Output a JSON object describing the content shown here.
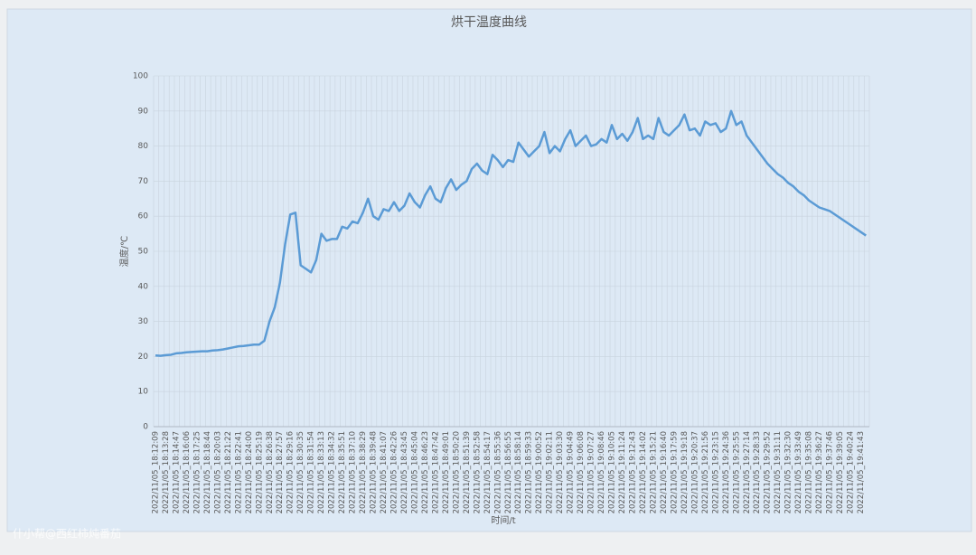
{
  "chart_data": {
    "type": "line",
    "title": "烘干温度曲线",
    "x_label": "时间/t",
    "y_label": "温度/℃",
    "watermark": "什小帮@西红柿炖番茄",
    "categories": [
      "2022/11/05_18:12:09",
      null,
      "2022/11/05_18:13:28",
      null,
      "2022/11/05_18:14:47",
      null,
      "2022/11/05_18:16:06",
      null,
      "2022/11/05_18:17:25",
      null,
      "2022/11/05_18:18:44",
      null,
      "2022/11/05_18:20:03",
      null,
      "2022/11/05_18:21:22",
      null,
      "2022/11/05_18:22:41",
      null,
      "2022/11/05_18:24:00",
      null,
      "2022/11/05_18:25:19",
      null,
      "2022/11/05_18:26:38",
      null,
      "2022/11/05_18:27:57",
      null,
      "2022/11/05_18:29:16",
      null,
      "2022/11/05_18:30:35",
      null,
      "2022/11/05_18:31:54",
      null,
      "2022/11/05_18:33:13",
      null,
      "2022/11/05_18:34:32",
      null,
      "2022/11/05_18:35:51",
      null,
      "2022/11/05_18:37:10",
      null,
      "2022/11/05_18:38:29",
      null,
      "2022/11/05_18:39:48",
      null,
      "2022/11/05_18:41:07",
      null,
      "2022/11/05_18:42:26",
      null,
      "2022/11/05_18:43:45",
      null,
      "2022/11/05_18:45:04",
      null,
      "2022/11/05_18:46:23",
      null,
      "2022/11/05_18:47:42",
      null,
      "2022/11/05_18:49:01",
      null,
      "2022/11/05_18:50:20",
      null,
      "2022/11/05_18:51:39",
      null,
      "2022/11/05_18:52:58",
      null,
      "2022/11/05_18:54:17",
      null,
      "2022/11/05_18:55:36",
      null,
      "2022/11/05_18:56:55",
      null,
      "2022/11/05_18:58:14",
      null,
      "2022/11/05_18:59:33",
      null,
      "2022/11/05_19:00:52",
      null,
      "2022/11/05_19:02:11",
      null,
      "2022/11/05_19:03:30",
      null,
      "2022/11/05_19:04:49",
      null,
      "2022/11/05_19:06:08",
      null,
      "2022/11/05_19:07:27",
      null,
      "2022/11/05_19:08:46",
      null,
      "2022/11/05_19:10:05",
      null,
      "2022/11/05_19:11:24",
      null,
      "2022/11/05_19:12:43",
      null,
      "2022/11/05_19:14:02",
      null,
      "2022/11/05_19:15:21",
      null,
      "2022/11/05_19:16:40",
      null,
      "2022/11/05_19:17:59",
      null,
      "2022/11/05_19:19:18",
      null,
      "2022/11/05_19:20:37",
      null,
      "2022/11/05_19:21:56",
      null,
      "2022/11/05_19:23:15",
      null,
      "2022/11/05_19:24:36",
      null,
      "2022/11/05_19:25:55",
      null,
      "2022/11/05_19:27:14",
      null,
      "2022/11/05_19:28:33",
      null,
      "2022/11/05_19:29:52",
      null,
      "2022/11/05_19:31:11",
      null,
      "2022/11/05_19:32:30",
      null,
      "2022/11/05_19:33:49",
      null,
      "2022/11/05_19:35:08",
      null,
      "2022/11/05_19:36:27",
      null,
      "2022/11/05_19:37:46",
      null,
      "2022/11/05_19:39:05",
      null,
      "2022/11/05_19:40:24",
      null,
      "2022/11/05_19:41:43",
      null
    ],
    "values": [
      20.3,
      20.2,
      20.4,
      20.5,
      20.9,
      21.0,
      21.2,
      21.3,
      21.4,
      21.5,
      21.5,
      21.7,
      21.8,
      22.0,
      22.3,
      22.6,
      22.9,
      23.0,
      23.2,
      23.4,
      23.4,
      24.5,
      30,
      34,
      41,
      52,
      60.5,
      61,
      46,
      45,
      44,
      47.5,
      55,
      53,
      53.5,
      53.5,
      57,
      56.5,
      58.5,
      58,
      61,
      65,
      60,
      59,
      62,
      61.5,
      64,
      61.5,
      63,
      66.5,
      64,
      62.5,
      66,
      68.5,
      65,
      64,
      68,
      70.5,
      67.5,
      69,
      70,
      73.5,
      75,
      73,
      72,
      77.5,
      76,
      74,
      76,
      75.5,
      81,
      79,
      77,
      78.5,
      80,
      84,
      78,
      80,
      78.5,
      82,
      84.5,
      80,
      81.5,
      83,
      80,
      80.5,
      82,
      81,
      86,
      82,
      83.5,
      81.5,
      84,
      88,
      82,
      83,
      82,
      88,
      84,
      83,
      84.5,
      86,
      89,
      84.5,
      85,
      83,
      87,
      86,
      86.5,
      84,
      85,
      90,
      86,
      87,
      83,
      81,
      79,
      77,
      75,
      73.5,
      72,
      71,
      69.5,
      68.5,
      67,
      66,
      64.5,
      63.5,
      62.5,
      62,
      61.5,
      60.5,
      59.5,
      58.5,
      57.5,
      56.5,
      55.5,
      54.5
    ],
    "color": "#5b9bd5",
    "ylim": [
      0,
      100
    ],
    "yticks": [
      0,
      10,
      20,
      30,
      40,
      50,
      60,
      70,
      80,
      90,
      100
    ],
    "grid": true
  }
}
